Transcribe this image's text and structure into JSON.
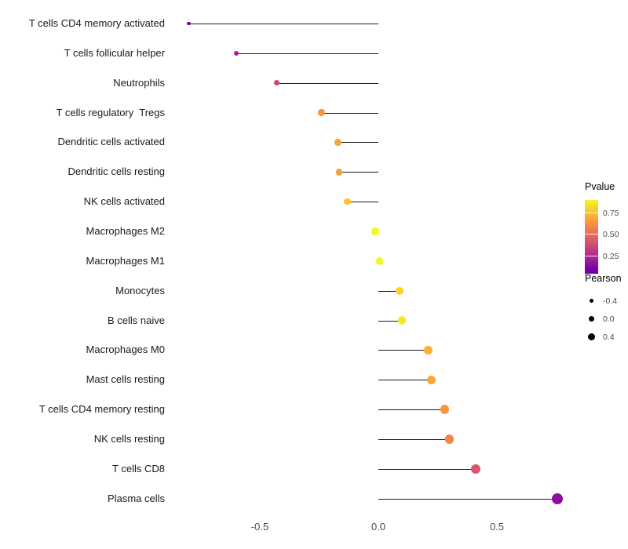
{
  "figure": {
    "background": "#ffffff"
  },
  "chart_data": {
    "type": "lollipop",
    "orientation": "horizontal",
    "title": "",
    "xlabel": "",
    "ylabel": "",
    "grid": false,
    "xlim": [
      -0.9,
      0.85
    ],
    "x_ticks": [
      {
        "label": "-0.5",
        "value": -0.5
      },
      {
        "label": "0.0",
        "value": 0.0
      },
      {
        "label": "0.5",
        "value": 0.5
      }
    ],
    "stem_color": "#1a1a1a",
    "points": [
      {
        "label": "T cells CD4 memory activated",
        "pearson": -0.8,
        "color": "#7e03a8"
      },
      {
        "label": "T cells follicular helper",
        "pearson": -0.6,
        "color": "#a62098"
      },
      {
        "label": "Neutrophils",
        "pearson": -0.43,
        "color": "#cc4778"
      },
      {
        "label": "T cells regulatory  Tregs",
        "pearson": -0.24,
        "color": "#f9973f"
      },
      {
        "label": "Dendritic cells activated",
        "pearson": -0.17,
        "color": "#fba238"
      },
      {
        "label": "Dendritic cells resting",
        "pearson": -0.165,
        "color": "#fba238"
      },
      {
        "label": "NK cells activated",
        "pearson": -0.13,
        "color": "#fdc229"
      },
      {
        "label": "Macrophages M2",
        "pearson": -0.013,
        "color": "#f0f921"
      },
      {
        "label": "Macrophages M1",
        "pearson": 0.005,
        "color": "#f0f921"
      },
      {
        "label": "Monocytes",
        "pearson": 0.09,
        "color": "#fcd225"
      },
      {
        "label": "B cells naive",
        "pearson": 0.1,
        "color": "#f2ea26"
      },
      {
        "label": "Macrophages M0",
        "pearson": 0.21,
        "color": "#fdad32"
      },
      {
        "label": "Mast cells resting",
        "pearson": 0.225,
        "color": "#fca636"
      },
      {
        "label": "T cells CD4 memory resting",
        "pearson": 0.28,
        "color": "#f9973f"
      },
      {
        "label": "NK cells resting",
        "pearson": 0.3,
        "color": "#f5864b"
      },
      {
        "label": "T cells CD8",
        "pearson": 0.41,
        "color": "#d8576b"
      },
      {
        "label": "Plasma cells",
        "pearson": 0.755,
        "color": "#8f0da4"
      }
    ],
    "legends": {
      "pvalue": {
        "title": "Pvalue",
        "ticks": [
          "0.75",
          "0.50",
          "0.25"
        ],
        "gradient": [
          "#f0f921",
          "#fca636",
          "#e16462",
          "#b12a90",
          "#7e03a8",
          "#6a00a8"
        ]
      },
      "pearson": {
        "title": "Pearson",
        "items": [
          {
            "label": "-0.4",
            "r": 2.5
          },
          {
            "label": "0.0",
            "r": 3.6
          },
          {
            "label": "0.4",
            "r": 4.8
          }
        ]
      }
    }
  }
}
